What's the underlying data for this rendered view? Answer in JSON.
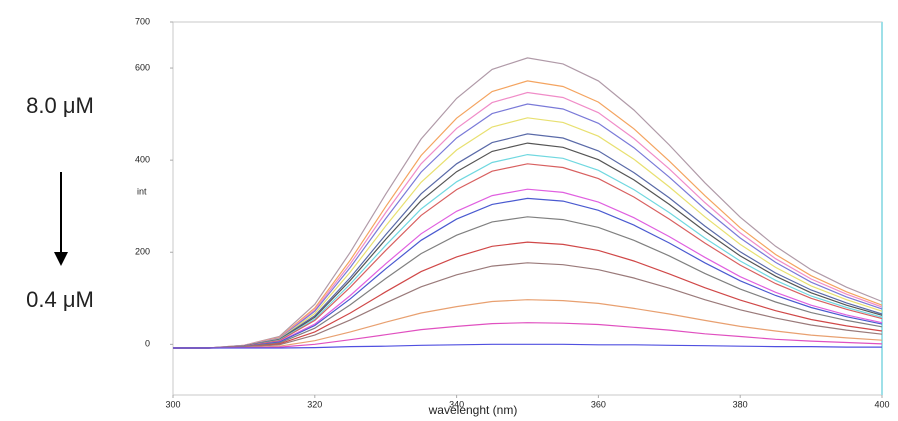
{
  "chart_data": {
    "type": "line",
    "annotations": [
      "8.0 μM",
      "0.4 μM"
    ],
    "xlabel": "wavelenght (nm)",
    "ylabel": "int",
    "xlim": [
      300,
      400
    ],
    "xticks": [
      300,
      320,
      340,
      360,
      380,
      400
    ],
    "ylim": [
      -110,
      700
    ],
    "yticks": [
      0,
      200,
      400,
      600,
      700
    ],
    "x": [
      300,
      305,
      310,
      315,
      320,
      325,
      330,
      335,
      340,
      345,
      350,
      355,
      360,
      365,
      370,
      375,
      380,
      385,
      390,
      395,
      400
    ],
    "series": [
      {
        "color": "#b09aa8",
        "values": [
          -8,
          -8,
          -2,
          17,
          87,
          200,
          326,
          446,
          534,
          597,
          622,
          609,
          572,
          509,
          433,
          351,
          276,
          213,
          162,
          124,
          93
        ]
      },
      {
        "color": "#f4a460",
        "values": [
          -8,
          -8,
          -2,
          15,
          79,
          183,
          299,
          410,
          491,
          549,
          572,
          560,
          526,
          468,
          398,
          323,
          253,
          195,
          149,
          114,
          85
        ]
      },
      {
        "color": "#f08cc8",
        "values": [
          -8,
          -8,
          -2,
          14,
          75,
          175,
          286,
          392,
          469,
          525,
          547,
          536,
          503,
          447,
          381,
          308,
          242,
          186,
          142,
          109,
          81
        ]
      },
      {
        "color": "#7a7ad8",
        "values": [
          -8,
          -8,
          -3,
          13,
          72,
          167,
          273,
          374,
          448,
          501,
          522,
          511,
          480,
          427,
          363,
          294,
          231,
          178,
          135,
          103,
          77
        ]
      },
      {
        "color": "#e8e070",
        "values": [
          -8,
          -8,
          -3,
          12,
          67,
          157,
          257,
          352,
          422,
          472,
          492,
          482,
          452,
          402,
          342,
          277,
          217,
          167,
          127,
          97,
          72
        ]
      },
      {
        "color": "#5a6aa8",
        "values": [
          -8,
          -8,
          -3,
          11,
          62,
          145,
          238,
          327,
          392,
          438,
          457,
          448,
          420,
          373,
          318,
          257,
          201,
          155,
          118,
          90,
          66
        ]
      },
      {
        "color": "#555555",
        "values": [
          -8,
          -8,
          -4,
          10,
          59,
          139,
          228,
          312,
          375,
          419,
          437,
          428,
          401,
          357,
          304,
          246,
          192,
          148,
          112,
          85,
          63
        ]
      },
      {
        "color": "#70d8e0",
        "values": [
          -8,
          -8,
          -4,
          9,
          55,
          131,
          215,
          294,
          353,
          395,
          412,
          404,
          378,
          336,
          286,
          231,
          181,
          139,
          105,
          80,
          59
        ]
      },
      {
        "color": "#d86060",
        "values": [
          -8,
          -8,
          -4,
          8,
          52,
          124,
          204,
          280,
          336,
          376,
          392,
          384,
          360,
          320,
          272,
          220,
          172,
          132,
          100,
          76,
          56
        ]
      },
      {
        "color": "#e060e0",
        "values": [
          -8,
          -8,
          -5,
          6,
          44,
          106,
          175,
          240,
          289,
          323,
          337,
          330,
          309,
          275,
          234,
          189,
          147,
          113,
          85,
          64,
          47
        ]
      },
      {
        "color": "#4a5ad0",
        "values": [
          -8,
          -8,
          -5,
          5,
          41,
          99,
          164,
          226,
          272,
          304,
          317,
          311,
          291,
          259,
          220,
          177,
          138,
          106,
          80,
          60,
          44
        ]
      },
      {
        "color": "#808080",
        "values": [
          -8,
          -8,
          -5,
          3,
          35,
          86,
          143,
          197,
          237,
          266,
          277,
          271,
          254,
          226,
          192,
          154,
          120,
          92,
          69,
          52,
          38
        ]
      },
      {
        "color": "#d04848",
        "values": [
          -8,
          -8,
          -6,
          1,
          27,
          68,
          114,
          158,
          190,
          213,
          222,
          217,
          204,
          181,
          153,
          123,
          96,
          73,
          54,
          40,
          29
        ]
      },
      {
        "color": "#9a7a7a",
        "values": [
          -8,
          -8,
          -6,
          -1,
          20,
          53,
          90,
          125,
          151,
          170,
          177,
          173,
          162,
          144,
          122,
          97,
          75,
          57,
          42,
          31,
          22
        ]
      },
      {
        "color": "#e8a070",
        "values": [
          -8,
          -8,
          -7,
          -4,
          8,
          27,
          48,
          68,
          82,
          93,
          97,
          95,
          89,
          78,
          66,
          52,
          39,
          29,
          20,
          14,
          9
        ]
      },
      {
        "color": "#e050c0",
        "values": [
          -8,
          -8,
          -7,
          -6,
          0,
          10,
          21,
          32,
          39,
          45,
          47,
          46,
          43,
          37,
          31,
          23,
          17,
          11,
          7,
          4,
          1
        ]
      },
      {
        "color": "#5050e0",
        "values": [
          -8,
          -8,
          -8,
          -8,
          -7,
          -5,
          -4,
          -2,
          -1,
          0,
          0,
          0,
          -1,
          -1,
          -2,
          -3,
          -4,
          -5,
          -5,
          -6,
          -6
        ]
      }
    ]
  }
}
